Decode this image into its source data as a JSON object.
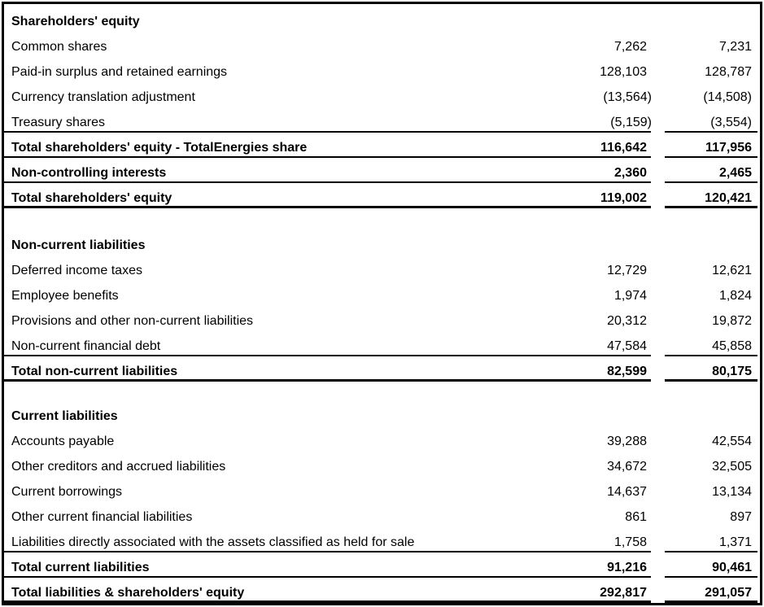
{
  "colors": {
    "text": "#000000",
    "background": "#ffffff",
    "border": "#000000"
  },
  "sections": [
    {
      "header": "Shareholders' equity",
      "rows": [
        {
          "label": "Common shares",
          "col1": "7,262",
          "col2": "7,231"
        },
        {
          "label": "Paid-in surplus and retained earnings",
          "col1": "128,103",
          "col2": "128,787"
        },
        {
          "label": "Currency translation adjustment",
          "col1": "(13,564)",
          "col2": "(14,508)"
        },
        {
          "label": "Treasury shares",
          "col1": "(5,159)",
          "col2": "(3,554)"
        },
        {
          "label": "Total shareholders' equity - TotalEnergies share",
          "col1": "116,642",
          "col2": "117,956"
        },
        {
          "label": "Non-controlling interests",
          "col1": "2,360",
          "col2": "2,465"
        },
        {
          "label": "Total shareholders' equity",
          "col1": "119,002",
          "col2": "120,421"
        }
      ]
    },
    {
      "header": "Non-current liabilities",
      "rows": [
        {
          "label": "Deferred income taxes",
          "col1": "12,729",
          "col2": "12,621"
        },
        {
          "label": "Employee benefits",
          "col1": "1,974",
          "col2": "1,824"
        },
        {
          "label": "Provisions and other non-current liabilities",
          "col1": "20,312",
          "col2": "19,872"
        },
        {
          "label": "Non-current financial debt",
          "col1": "47,584",
          "col2": "45,858"
        },
        {
          "label": "Total non-current liabilities",
          "col1": "82,599",
          "col2": "80,175"
        }
      ]
    },
    {
      "header": "Current liabilities",
      "rows": [
        {
          "label": "Accounts payable",
          "col1": "39,288",
          "col2": "42,554"
        },
        {
          "label": "Other creditors and accrued liabilities",
          "col1": "34,672",
          "col2": "32,505"
        },
        {
          "label": "Current borrowings",
          "col1": "14,637",
          "col2": "13,134"
        },
        {
          "label": "Other current financial liabilities",
          "col1": "861",
          "col2": "897"
        },
        {
          "label": "Liabilities directly associated with the assets classified as held for sale",
          "col1": "1,758",
          "col2": "1,371"
        },
        {
          "label": "Total current liabilities",
          "col1": "91,216",
          "col2": "90,461"
        },
        {
          "label": "Total liabilities & shareholders' equity",
          "col1": "292,817",
          "col2": "291,057"
        }
      ]
    }
  ]
}
